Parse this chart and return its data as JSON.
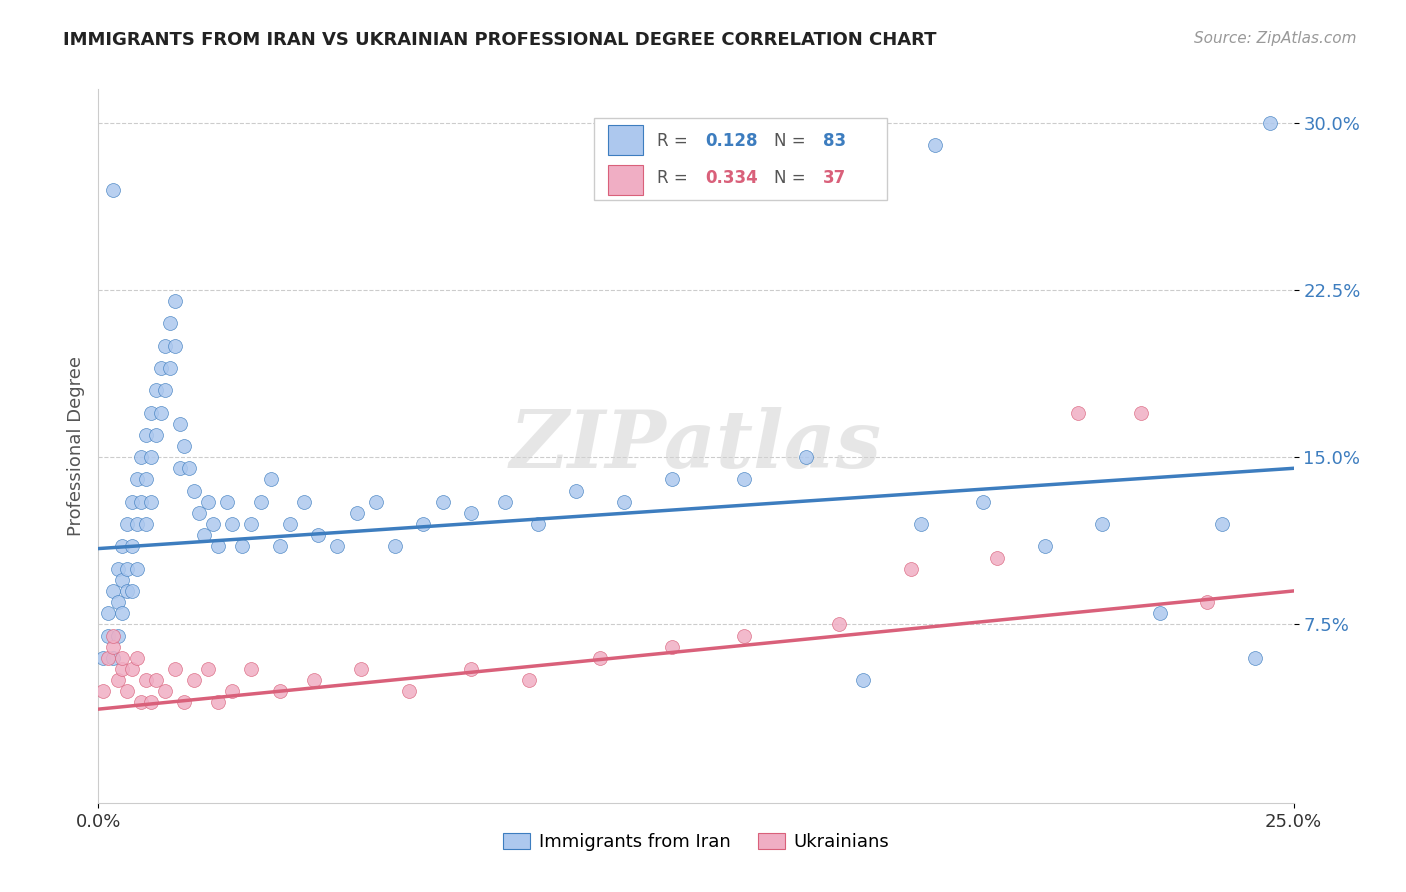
{
  "title": "IMMIGRANTS FROM IRAN VS UKRAINIAN PROFESSIONAL DEGREE CORRELATION CHART",
  "source": "Source: ZipAtlas.com",
  "ylabel": "Professional Degree",
  "x_min": 0.0,
  "x_max": 0.25,
  "y_min": -0.005,
  "y_max": 0.315,
  "iran_color": "#adc8ee",
  "ukraine_color": "#f0aec4",
  "iran_line_color": "#3d7dbf",
  "ukraine_line_color": "#d9607a",
  "legend_iran_R": "0.128",
  "legend_iran_N": "83",
  "legend_ukraine_R": "0.334",
  "legend_ukraine_N": "37",
  "watermark": "ZIPatlas",
  "iran_trend_x0": 0.0,
  "iran_trend_y0": 0.109,
  "iran_trend_x1": 0.25,
  "iran_trend_y1": 0.145,
  "ukraine_trend_x0": 0.0,
  "ukraine_trend_y0": 0.037,
  "ukraine_trend_x1": 0.25,
  "ukraine_trend_y1": 0.09,
  "iran_x": [
    0.001,
    0.002,
    0.002,
    0.003,
    0.003,
    0.004,
    0.004,
    0.004,
    0.005,
    0.005,
    0.005,
    0.006,
    0.006,
    0.006,
    0.007,
    0.007,
    0.007,
    0.008,
    0.008,
    0.008,
    0.009,
    0.009,
    0.01,
    0.01,
    0.01,
    0.011,
    0.011,
    0.011,
    0.012,
    0.012,
    0.013,
    0.013,
    0.014,
    0.014,
    0.015,
    0.015,
    0.016,
    0.016,
    0.017,
    0.017,
    0.018,
    0.019,
    0.02,
    0.021,
    0.022,
    0.023,
    0.024,
    0.025,
    0.027,
    0.028,
    0.03,
    0.032,
    0.034,
    0.036,
    0.038,
    0.04,
    0.043,
    0.046,
    0.05,
    0.054,
    0.058,
    0.062,
    0.068,
    0.072,
    0.078,
    0.085,
    0.092,
    0.1,
    0.11,
    0.12,
    0.135,
    0.148,
    0.16,
    0.172,
    0.185,
    0.198,
    0.21,
    0.222,
    0.235,
    0.242,
    0.003,
    0.175,
    0.245
  ],
  "iran_y": [
    0.06,
    0.07,
    0.08,
    0.06,
    0.09,
    0.085,
    0.1,
    0.07,
    0.095,
    0.11,
    0.08,
    0.12,
    0.1,
    0.09,
    0.13,
    0.11,
    0.09,
    0.14,
    0.12,
    0.1,
    0.15,
    0.13,
    0.16,
    0.14,
    0.12,
    0.17,
    0.15,
    0.13,
    0.18,
    0.16,
    0.19,
    0.17,
    0.2,
    0.18,
    0.21,
    0.19,
    0.22,
    0.2,
    0.165,
    0.145,
    0.155,
    0.145,
    0.135,
    0.125,
    0.115,
    0.13,
    0.12,
    0.11,
    0.13,
    0.12,
    0.11,
    0.12,
    0.13,
    0.14,
    0.11,
    0.12,
    0.13,
    0.115,
    0.11,
    0.125,
    0.13,
    0.11,
    0.12,
    0.13,
    0.125,
    0.13,
    0.12,
    0.135,
    0.13,
    0.14,
    0.14,
    0.15,
    0.05,
    0.12,
    0.13,
    0.11,
    0.12,
    0.08,
    0.12,
    0.06,
    0.27,
    0.29,
    0.3
  ],
  "ukraine_x": [
    0.001,
    0.002,
    0.003,
    0.003,
    0.004,
    0.005,
    0.005,
    0.006,
    0.007,
    0.008,
    0.009,
    0.01,
    0.011,
    0.012,
    0.014,
    0.016,
    0.018,
    0.02,
    0.023,
    0.025,
    0.028,
    0.032,
    0.038,
    0.045,
    0.055,
    0.065,
    0.078,
    0.09,
    0.105,
    0.12,
    0.135,
    0.155,
    0.17,
    0.188,
    0.205,
    0.218,
    0.232
  ],
  "ukraine_y": [
    0.045,
    0.06,
    0.065,
    0.07,
    0.05,
    0.055,
    0.06,
    0.045,
    0.055,
    0.06,
    0.04,
    0.05,
    0.04,
    0.05,
    0.045,
    0.055,
    0.04,
    0.05,
    0.055,
    0.04,
    0.045,
    0.055,
    0.045,
    0.05,
    0.055,
    0.045,
    0.055,
    0.05,
    0.06,
    0.065,
    0.07,
    0.075,
    0.1,
    0.105,
    0.17,
    0.17,
    0.085
  ]
}
